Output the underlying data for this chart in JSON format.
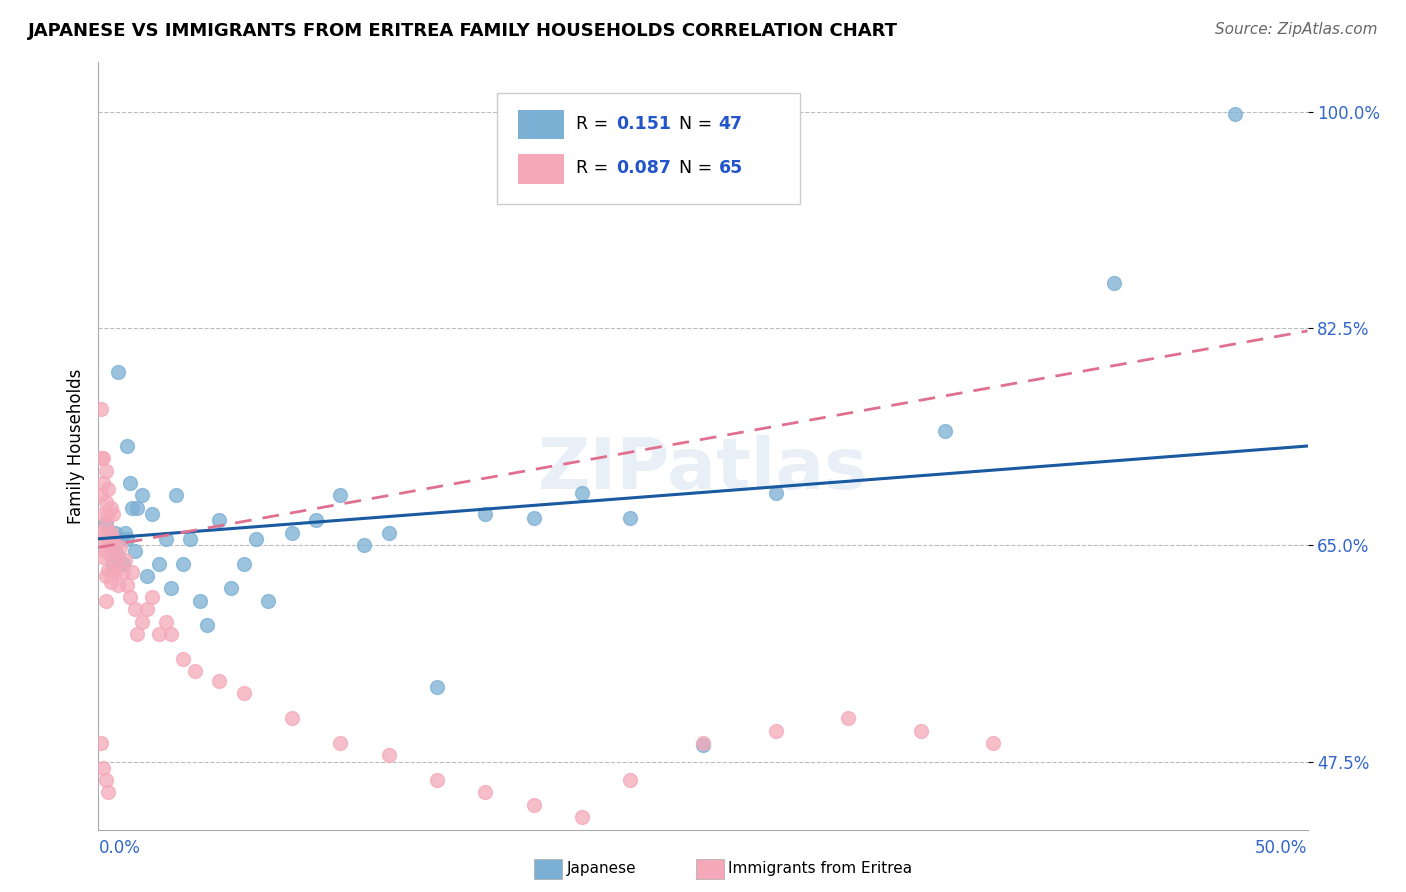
{
  "title": "JAPANESE VS IMMIGRANTS FROM ERITREA FAMILY HOUSEHOLDS CORRELATION CHART",
  "source": "Source: ZipAtlas.com",
  "ylabel": "Family Households",
  "ytick_vals": [
    0.475,
    0.65,
    0.825,
    1.0
  ],
  "ytick_labels": [
    "47.5%",
    "65.0%",
    "82.5%",
    "100.0%"
  ],
  "xmin": 0.0,
  "xmax": 0.5,
  "ymin": 0.42,
  "ymax": 1.04,
  "legend_R1": "0.151",
  "legend_N1": "47",
  "legend_R2": "0.087",
  "legend_N2": "65",
  "color_japanese": "#7BAFD4",
  "color_eritrea": "#F4A8B8",
  "color_jap_line": "#1A5AA0",
  "color_eri_line": "#E07090",
  "japanese_x": [
    0.003,
    0.005,
    0.006,
    0.007,
    0.007,
    0.008,
    0.009,
    0.01,
    0.011,
    0.012,
    0.013,
    0.014,
    0.015,
    0.016,
    0.018,
    0.02,
    0.022,
    0.025,
    0.028,
    0.03,
    0.032,
    0.035,
    0.038,
    0.042,
    0.045,
    0.05,
    0.055,
    0.06,
    0.065,
    0.07,
    0.08,
    0.09,
    0.1,
    0.11,
    0.12,
    0.14,
    0.16,
    0.18,
    0.2,
    0.22,
    0.25,
    0.28,
    0.35,
    0.42,
    0.47,
    0.008,
    0.012
  ],
  "japanese_y": [
    0.668,
    0.648,
    0.635,
    0.645,
    0.66,
    0.64,
    0.655,
    0.635,
    0.66,
    0.655,
    0.7,
    0.68,
    0.645,
    0.68,
    0.69,
    0.625,
    0.675,
    0.635,
    0.655,
    0.615,
    0.69,
    0.635,
    0.655,
    0.605,
    0.585,
    0.67,
    0.615,
    0.635,
    0.655,
    0.605,
    0.66,
    0.67,
    0.69,
    0.65,
    0.66,
    0.535,
    0.675,
    0.672,
    0.692,
    0.672,
    0.488,
    0.692,
    0.742,
    0.862,
    0.998,
    0.79,
    0.73
  ],
  "eritrea_x": [
    0.001,
    0.001,
    0.001,
    0.001,
    0.002,
    0.002,
    0.002,
    0.002,
    0.002,
    0.003,
    0.003,
    0.003,
    0.003,
    0.003,
    0.003,
    0.004,
    0.004,
    0.004,
    0.004,
    0.005,
    0.005,
    0.005,
    0.005,
    0.006,
    0.006,
    0.006,
    0.007,
    0.007,
    0.008,
    0.008,
    0.009,
    0.01,
    0.011,
    0.012,
    0.013,
    0.014,
    0.015,
    0.016,
    0.018,
    0.02,
    0.022,
    0.025,
    0.028,
    0.03,
    0.035,
    0.04,
    0.05,
    0.06,
    0.08,
    0.1,
    0.12,
    0.14,
    0.16,
    0.18,
    0.2,
    0.22,
    0.25,
    0.28,
    0.31,
    0.34,
    0.37,
    0.001,
    0.002,
    0.003,
    0.004
  ],
  "eritrea_y": [
    0.76,
    0.72,
    0.69,
    0.66,
    0.72,
    0.7,
    0.675,
    0.655,
    0.64,
    0.71,
    0.685,
    0.665,
    0.645,
    0.625,
    0.605,
    0.695,
    0.675,
    0.65,
    0.63,
    0.68,
    0.66,
    0.64,
    0.62,
    0.675,
    0.655,
    0.63,
    0.648,
    0.628,
    0.638,
    0.618,
    0.648,
    0.628,
    0.638,
    0.618,
    0.608,
    0.628,
    0.598,
    0.578,
    0.588,
    0.598,
    0.608,
    0.578,
    0.588,
    0.578,
    0.558,
    0.548,
    0.54,
    0.53,
    0.51,
    0.49,
    0.48,
    0.46,
    0.45,
    0.44,
    0.43,
    0.46,
    0.49,
    0.5,
    0.51,
    0.5,
    0.49,
    0.49,
    0.47,
    0.46,
    0.45
  ]
}
